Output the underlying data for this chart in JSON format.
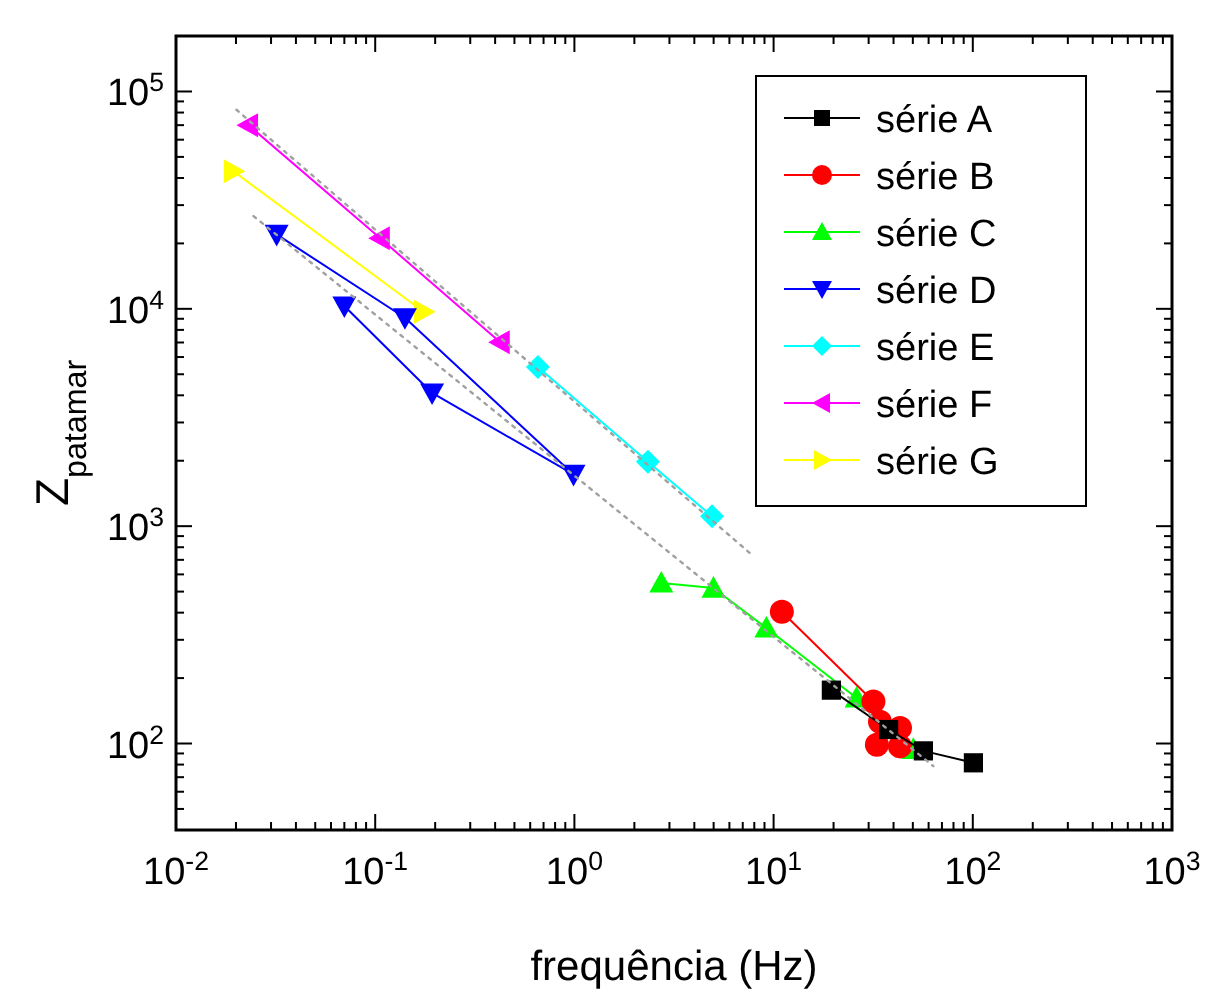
{
  "chart_data": {
    "type": "line",
    "xlabel": "frequência (Hz)",
    "ylabel": "Z$_{patamar}$",
    "log": "xy",
    "grid": false,
    "legend": "top right",
    "xlim": [
      0.01,
      1000
    ],
    "ylim": [
      40,
      180000
    ],
    "xticks": [
      {
        "value": 0.01,
        "label": "10$^{-2}$"
      },
      {
        "value": 0.1,
        "label": "10$^{-1}$"
      },
      {
        "value": 1,
        "label": "10$^{0}$"
      },
      {
        "value": 10,
        "label": "10$^{1}$"
      },
      {
        "value": 100,
        "label": "10$^{2}$"
      },
      {
        "value": 1000,
        "label": "10$^{3}$"
      },
      {
        "value": 0.02,
        "label": null
      },
      {
        "value": 0.03,
        "label": null
      },
      {
        "value": 0.04,
        "label": null
      },
      {
        "value": 0.05,
        "label": null
      },
      {
        "value": 0.06,
        "label": null
      },
      {
        "value": 0.07,
        "label": null
      },
      {
        "value": 0.08,
        "label": null
      },
      {
        "value": 0.09,
        "label": null
      },
      {
        "value": 0.2,
        "label": null
      },
      {
        "value": 0.3,
        "label": null
      },
      {
        "value": 0.4,
        "label": null
      },
      {
        "value": 0.5,
        "label": null
      },
      {
        "value": 0.6,
        "label": null
      },
      {
        "value": 0.7,
        "label": null
      },
      {
        "value": 0.8,
        "label": null
      },
      {
        "value": 0.9,
        "label": null
      },
      {
        "value": 2,
        "label": null
      },
      {
        "value": 3,
        "label": null
      },
      {
        "value": 4,
        "label": null
      },
      {
        "value": 5,
        "label": null
      },
      {
        "value": 6,
        "label": null
      },
      {
        "value": 7,
        "label": null
      },
      {
        "value": 8,
        "label": null
      },
      {
        "value": 9,
        "label": null
      },
      {
        "value": 20,
        "label": null
      },
      {
        "value": 30,
        "label": null
      },
      {
        "value": 40,
        "label": null
      },
      {
        "value": 50,
        "label": null
      },
      {
        "value": 60,
        "label": null
      },
      {
        "value": 70,
        "label": null
      },
      {
        "value": 80,
        "label": null
      },
      {
        "value": 90,
        "label": null
      },
      {
        "value": 200,
        "label": null
      },
      {
        "value": 300,
        "label": null
      },
      {
        "value": 400,
        "label": null
      },
      {
        "value": 500,
        "label": null
      },
      {
        "value": 600,
        "label": null
      },
      {
        "value": 700,
        "label": null
      },
      {
        "value": 800,
        "label": null
      },
      {
        "value": 900,
        "label": null
      }
    ],
    "yticks": [
      {
        "value": 100,
        "label": "10$^{2}$"
      },
      {
        "value": 1000,
        "label": "10$^{3}$"
      },
      {
        "value": 10000,
        "label": "10$^{4}$"
      },
      {
        "value": 100000,
        "label": "10$^{5}$"
      },
      {
        "value": 40,
        "label": null
      },
      {
        "value": 50,
        "label": null
      },
      {
        "value": 60,
        "label": null
      },
      {
        "value": 70,
        "label": null
      },
      {
        "value": 80,
        "label": null
      },
      {
        "value": 90,
        "label": null
      },
      {
        "value": 200,
        "label": null
      },
      {
        "value": 300,
        "label": null
      },
      {
        "value": 400,
        "label": null
      },
      {
        "value": 500,
        "label": null
      },
      {
        "value": 600,
        "label": null
      },
      {
        "value": 700,
        "label": null
      },
      {
        "value": 800,
        "label": null
      },
      {
        "value": 900,
        "label": null
      },
      {
        "value": 2000,
        "label": null
      },
      {
        "value": 3000,
        "label": null
      },
      {
        "value": 4000,
        "label": null
      },
      {
        "value": 5000,
        "label": null
      },
      {
        "value": 6000,
        "label": null
      },
      {
        "value": 7000,
        "label": null
      },
      {
        "value": 8000,
        "label": null
      },
      {
        "value": 9000,
        "label": null
      },
      {
        "value": 20000,
        "label": null
      },
      {
        "value": 30000,
        "label": null
      },
      {
        "value": 40000,
        "label": null
      },
      {
        "value": 50000,
        "label": null
      },
      {
        "value": 60000,
        "label": null
      },
      {
        "value": 70000,
        "label": null
      },
      {
        "value": 80000,
        "label": null
      },
      {
        "value": 90000,
        "label": null
      }
    ],
    "series": [
      {
        "type": "line",
        "color": "#a0a0a0",
        "line_style": "dotted",
        "marker": "none",
        "x": [
          0.0201,
          7.92
        ],
        "values": [
          82400,
          728
        ]
      },
      {
        "type": "line",
        "color": "#a0a0a0",
        "line_style": "dotted",
        "marker": "none",
        "x": [
          0.0245,
          63.4
        ],
        "values": [
          26700,
          78.7
        ]
      },
      {
        "name": "série A",
        "color": "#000000",
        "marker": "square",
        "x": [
          19.5,
          37.8,
          56.5,
          100.7
        ],
        "values": [
          176,
          116,
          92.5,
          81.5
        ]
      },
      {
        "name": "série B",
        "color": "#ff0000",
        "marker": "circle",
        "x": [
          11.0,
          31.7,
          34.2,
          43.1,
          43.1,
          33
        ],
        "values": [
          404,
          156,
          126,
          118,
          97,
          98.6
        ]
      },
      {
        "name": "série C",
        "color": "#00ff00",
        "marker": "triangle",
        "x": [
          2.73,
          4.99,
          9.2,
          26.1,
          50.3
        ],
        "values": [
          548,
          519,
          340,
          162,
          94
        ]
      },
      {
        "name": "série D",
        "color": "#0000ff",
        "marker": "triangle-down",
        "x": [
          0.032,
          0.141,
          0.99,
          0.193,
          0.07
        ],
        "values": [
          22000,
          9100,
          1730,
          4100,
          10300
        ]
      },
      {
        "name": "série E",
        "color": "#00ffff",
        "marker": "diamond",
        "x": [
          0.656,
          2.34,
          4.91
        ],
        "values": [
          5400,
          1980,
          1110
        ]
      },
      {
        "name": "série F",
        "color": "#ff00ff",
        "marker": "triangle-left",
        "x": [
          0.0231,
          0.106,
          0.424
        ],
        "values": [
          70000,
          21100,
          7020
        ]
      },
      {
        "name": "série G",
        "color": "#ffff00",
        "marker": "triangle-right",
        "x": [
          0.0194,
          0.175
        ],
        "values": [
          43000,
          9700
        ]
      }
    ]
  }
}
